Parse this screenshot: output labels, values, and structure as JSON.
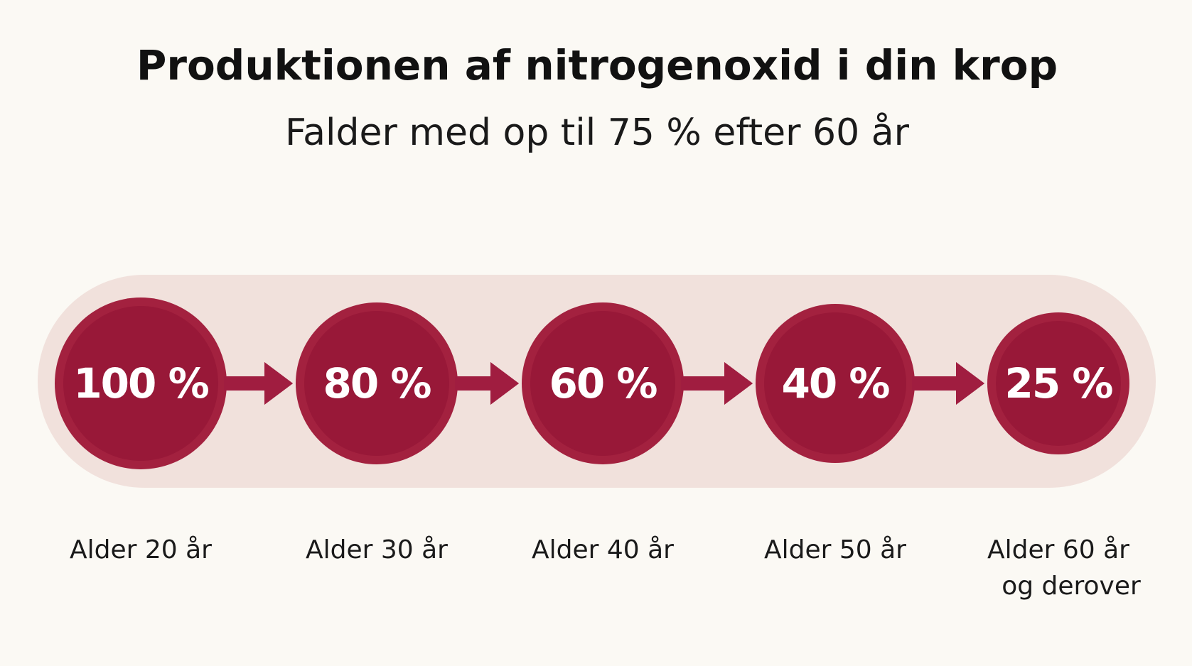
{
  "header": {
    "title": "Produktionen af nitrogenoxid i din krop",
    "subtitle": "Falder med op til 75 % efter 60 år"
  },
  "steps": [
    {
      "percent": "100 %",
      "age": [
        "Alder 20 år"
      ]
    },
    {
      "percent": "80 %",
      "age": [
        "Alder 30 år"
      ]
    },
    {
      "percent": "60 %",
      "age": [
        "Alder 40 år"
      ]
    },
    {
      "percent": "40 %",
      "age": [
        "Alder 50 år"
      ]
    },
    {
      "percent": "25 %",
      "age": [
        "Alder 60 år",
        "og derover"
      ]
    }
  ]
}
